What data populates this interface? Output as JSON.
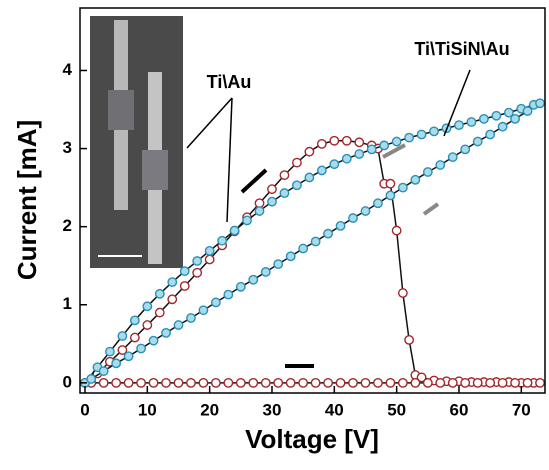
{
  "chart_data": {
    "type": "scatter-line",
    "xlabel": "Voltage [V]",
    "ylabel": "Current [mA]",
    "xlim": [
      -0.8,
      73.8
    ],
    "ylim": [
      -0.13,
      4.8
    ],
    "xticks": [
      0,
      10,
      20,
      30,
      40,
      50,
      60,
      70
    ],
    "yticks": [
      0,
      1,
      2,
      3,
      4
    ],
    "series": [
      {
        "name": "Ti\\Au",
        "color": "#a3262a",
        "fill": "#ffffff",
        "x": [
          0,
          2,
          4,
          6,
          8,
          10,
          12,
          14,
          16,
          18,
          20,
          22,
          24,
          26,
          28,
          30,
          32,
          34,
          36,
          38,
          40,
          42,
          44,
          46,
          47,
          48,
          49,
          50,
          51,
          52,
          53,
          54,
          56,
          58,
          60,
          62,
          64,
          66,
          68,
          70,
          72,
          73,
          71,
          69,
          67,
          65,
          63,
          61,
          59,
          57,
          55,
          53,
          51,
          49,
          47,
          45,
          43,
          41,
          39,
          37,
          35,
          33,
          31,
          29,
          27,
          25,
          23,
          21,
          19,
          17,
          15,
          13,
          11,
          9,
          7,
          5,
          3,
          1
        ],
        "values": [
          0,
          0.12,
          0.27,
          0.42,
          0.58,
          0.74,
          0.9,
          1.07,
          1.24,
          1.41,
          1.58,
          1.76,
          1.94,
          2.12,
          2.3,
          2.48,
          2.66,
          2.82,
          2.96,
          3.06,
          3.1,
          3.1,
          3.08,
          3.04,
          3.0,
          2.55,
          2.55,
          1.95,
          1.15,
          0.55,
          0.1,
          0.07,
          0.03,
          0.02,
          0.02,
          0.01,
          0.01,
          0.01,
          0.01,
          0,
          0,
          0,
          0,
          0,
          0,
          0,
          0,
          0,
          0,
          0,
          0,
          0,
          0,
          0,
          0,
          0,
          0,
          0,
          0,
          0,
          0,
          0,
          0,
          0,
          0,
          0,
          0,
          0,
          0,
          0,
          0,
          0,
          0,
          0,
          0,
          0,
          0,
          0
        ]
      },
      {
        "name": "Ti\\TiSiN\\Au",
        "color": "#2a8fb8",
        "fill": "#a8dce8",
        "x": [
          0,
          2,
          4,
          6,
          8,
          10,
          12,
          14,
          16,
          18,
          20,
          22,
          24,
          26,
          28,
          30,
          32,
          34,
          36,
          38,
          40,
          42,
          44,
          46,
          48,
          50,
          52,
          54,
          56,
          58,
          60,
          62,
          64,
          66,
          68,
          70,
          72,
          73,
          71,
          69,
          67,
          65,
          63,
          61,
          59,
          57,
          55,
          53,
          51,
          49,
          47,
          45,
          43,
          41,
          39,
          37,
          35,
          33,
          31,
          29,
          27,
          25,
          23,
          21,
          19,
          17,
          15,
          13,
          11,
          9,
          7,
          5,
          3,
          1
        ],
        "values": [
          0,
          0.2,
          0.4,
          0.6,
          0.8,
          0.98,
          1.14,
          1.29,
          1.43,
          1.56,
          1.69,
          1.82,
          1.95,
          2.08,
          2.2,
          2.32,
          2.43,
          2.53,
          2.63,
          2.72,
          2.8,
          2.87,
          2.93,
          2.99,
          3.04,
          3.09,
          3.14,
          3.18,
          3.22,
          3.26,
          3.3,
          3.34,
          3.38,
          3.42,
          3.46,
          3.51,
          3.56,
          3.58,
          3.48,
          3.38,
          3.28,
          3.18,
          3.09,
          2.99,
          2.89,
          2.79,
          2.7,
          2.6,
          2.5,
          2.4,
          2.3,
          2.2,
          2.11,
          2.01,
          1.91,
          1.81,
          1.72,
          1.62,
          1.52,
          1.42,
          1.32,
          1.23,
          1.13,
          1.03,
          0.93,
          0.83,
          0.74,
          0.64,
          0.54,
          0.44,
          0.34,
          0.25,
          0.15,
          0.05
        ]
      }
    ]
  }
}
